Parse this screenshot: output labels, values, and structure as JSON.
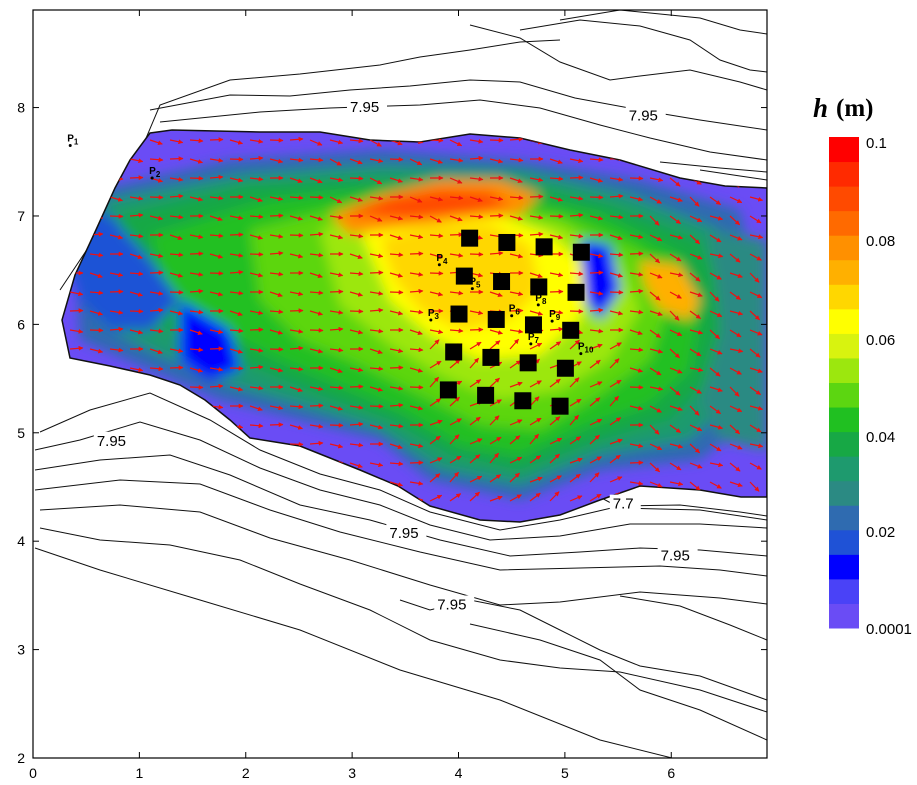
{
  "chart_data": {
    "type": "heatmap",
    "title": "",
    "xlabel": "",
    "ylabel": "",
    "xlim": [
      0,
      6.9
    ],
    "ylim": [
      2,
      8.9
    ],
    "xticks": [
      "0",
      "1",
      "2",
      "3",
      "4",
      "5",
      "6"
    ],
    "yticks": [
      "2",
      "3",
      "4",
      "5",
      "6",
      "7",
      "8"
    ],
    "colorbar": {
      "variable": "h",
      "unit": "(m)",
      "tick_labels": [
        "0.1",
        "0.08",
        "0.06",
        "0.04",
        "0.02",
        "0.0001"
      ],
      "min": 0.0001,
      "max": 0.1,
      "colors": [
        "#6a4cf5",
        "#4a42f7",
        "#0000ff",
        "#1f52d6",
        "#2f6bb0",
        "#2b8a83",
        "#1e9a6e",
        "#17a845",
        "#20c021",
        "#5cd611",
        "#9ce70e",
        "#d8f30f",
        "#ffff00",
        "#ffd700",
        "#ffb000",
        "#ff9000",
        "#ff6a00",
        "#ff4a00",
        "#ff2a00",
        "#ff0000"
      ]
    },
    "contour_labels": [
      {
        "text": "7.95",
        "x": 2.98,
        "y": 7.96
      },
      {
        "text": "7.95",
        "x": 5.6,
        "y": 7.88
      },
      {
        "text": "7.95",
        "x": 0.6,
        "y": 4.88
      },
      {
        "text": "7.95",
        "x": 3.35,
        "y": 4.03
      },
      {
        "text": "7.7",
        "x": 5.45,
        "y": 4.3
      },
      {
        "text": "7.95",
        "x": 5.9,
        "y": 3.82
      },
      {
        "text": "7.95",
        "x": 3.8,
        "y": 3.37
      }
    ],
    "points": [
      {
        "label": "P",
        "sub": "1",
        "x": 0.35,
        "y": 7.65
      },
      {
        "label": "P",
        "sub": "2",
        "x": 1.12,
        "y": 7.35
      },
      {
        "label": "P",
        "sub": "4",
        "x": 3.82,
        "y": 6.55
      },
      {
        "label": "P",
        "sub": "5",
        "x": 4.13,
        "y": 6.33
      },
      {
        "label": "P",
        "sub": "3",
        "x": 3.74,
        "y": 6.04
      },
      {
        "label": "P",
        "sub": "6",
        "x": 4.5,
        "y": 6.08
      },
      {
        "label": "P",
        "sub": "8",
        "x": 4.75,
        "y": 6.18
      },
      {
        "label": "P",
        "sub": "9",
        "x": 4.88,
        "y": 6.03
      },
      {
        "label": "P",
        "sub": "7",
        "x": 4.68,
        "y": 5.82
      },
      {
        "label": "P",
        "sub": "10",
        "x": 5.15,
        "y": 5.73
      }
    ],
    "obstacles": [
      [
        4.1,
        6.8
      ],
      [
        4.45,
        6.76
      ],
      [
        4.8,
        6.72
      ],
      [
        5.15,
        6.67
      ],
      [
        4.05,
        6.45
      ],
      [
        4.4,
        6.4
      ],
      [
        4.75,
        6.35
      ],
      [
        5.1,
        6.3
      ],
      [
        4.0,
        6.1
      ],
      [
        4.35,
        6.05
      ],
      [
        4.7,
        6.0
      ],
      [
        5.05,
        5.95
      ],
      [
        3.95,
        5.75
      ],
      [
        4.3,
        5.7
      ],
      [
        4.65,
        5.65
      ],
      [
        5.0,
        5.6
      ],
      [
        3.9,
        5.4
      ],
      [
        4.25,
        5.35
      ],
      [
        4.6,
        5.3
      ],
      [
        4.95,
        5.25
      ]
    ]
  }
}
